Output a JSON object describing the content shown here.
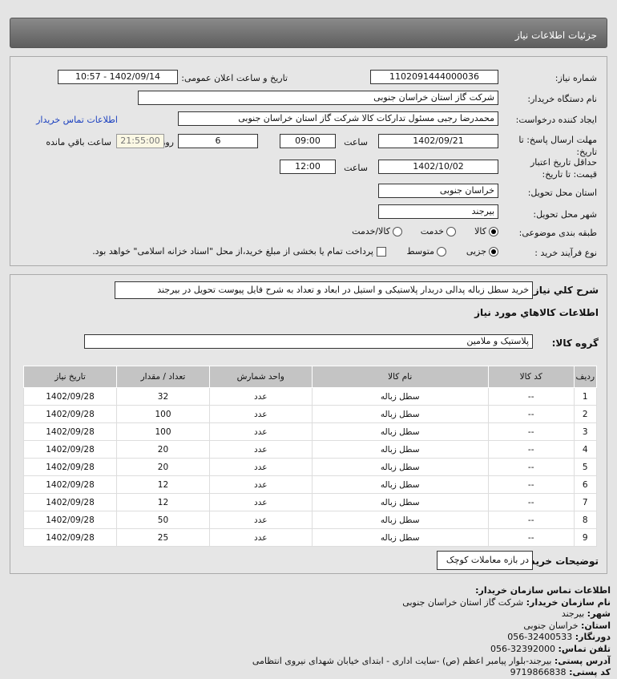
{
  "header": {
    "title": "جزئیات اطلاعات نیاز"
  },
  "form": {
    "need_number_label": "شماره نیاز:",
    "need_number": "1102091444000036",
    "announce_label": "تاریخ و ساعت اعلان عمومی:",
    "announce_value": "1402/09/14 - 10:57",
    "buyer_org_label": "نام دستگاه خریدار:",
    "buyer_org": "شرکت گاز استان خراسان جنوبی",
    "creator_label": "ایجاد کننده درخواست:",
    "creator": "محمدرضا رجبی مسئول تدارکات کالا شرکت گاز استان خراسان جنوبی",
    "contact_link": "اطلاعات تماس خریدار",
    "deadline_label": "مهلت ارسال پاسخ: تا تاریخ:",
    "deadline_date": "1402/09/21",
    "time_label": "ساعت",
    "deadline_time": "09:00",
    "days": "6",
    "days_label": "روز و",
    "remaining": "21:55:00",
    "remaining_label": "ساعت باقي مانده",
    "validity_label": "حداقل تاریخ اعتبار قیمت: تا تاریخ:",
    "validity_date": "1402/10/02",
    "validity_time": "12:00",
    "province_label": "استان محل تحویل:",
    "province": "خراسان جنوبی",
    "city_label": "شهر محل تحویل:",
    "city": "بیرجند",
    "category_label": "طبقه بندی موضوعی:",
    "category_options": [
      "کالا",
      "خدمت",
      "کالا/خدمت"
    ],
    "process_label": "نوع فرآیند خرید :",
    "process_options": [
      "جزیی",
      "متوسط"
    ],
    "payment_note": "پرداخت تمام یا بخشی از مبلغ خرید،از محل \"اسناد خزانه اسلامی\" خواهد بود."
  },
  "details": {
    "desc_label": "شرح کلي نیاز:",
    "desc": "خرید سطل زباله پدالی دربدار پلاستیکی و استیل در ابعاد و تعداد به شرح فایل پیوست تحویل در بیرجند",
    "goods_title": "اطلاعات کالاهاي مورد نیاز",
    "group_label": "گروه کالا:",
    "group": "پلاستیک و ملامین",
    "columns": [
      "ردیف",
      "کد کالا",
      "نام کالا",
      "واحد شمارش",
      "تعداد / مقدار",
      "تاریخ نیاز"
    ],
    "rows": [
      [
        "1",
        "--",
        "سطل زباله",
        "عدد",
        "32",
        "1402/09/28"
      ],
      [
        "2",
        "--",
        "سطل زباله",
        "عدد",
        "100",
        "1402/09/28"
      ],
      [
        "3",
        "--",
        "سطل زباله",
        "عدد",
        "100",
        "1402/09/28"
      ],
      [
        "4",
        "--",
        "سطل زباله",
        "عدد",
        "20",
        "1402/09/28"
      ],
      [
        "5",
        "--",
        "سطل زباله",
        "عدد",
        "20",
        "1402/09/28"
      ],
      [
        "6",
        "--",
        "سطل زباله",
        "عدد",
        "12",
        "1402/09/28"
      ],
      [
        "7",
        "--",
        "سطل زباله",
        "عدد",
        "12",
        "1402/09/28"
      ],
      [
        "8",
        "--",
        "سطل زباله",
        "عدد",
        "50",
        "1402/09/28"
      ],
      [
        "9",
        "--",
        "سطل زباله",
        "عدد",
        "25",
        "1402/09/28"
      ]
    ],
    "buyer_notes_label": "توضیحات خریدار:",
    "buyer_notes": "در بازه معاملات کوچک"
  },
  "contact": {
    "title": "اطلاعات تماس سازمان خریدار:",
    "items": [
      {
        "label": "نام سازمان خریدار:",
        "value": "شرکت گاز استان خراسان جنوبی"
      },
      {
        "label": "شهر:",
        "value": "بیرجند"
      },
      {
        "label": "استان:",
        "value": "خراسان جنوبی"
      },
      {
        "label": "دورنگار:",
        "value": "32400533-056"
      },
      {
        "label": "تلفن تماس:",
        "value": "32392000-056"
      },
      {
        "label": "آدرس پستی:",
        "value": "بیرجند-بلوار پیامبر اعظم (ص) -سایت اداری - ابتدای خیابان شهدای نیروی انتظامی"
      },
      {
        "label": "کد پستی:",
        "value": "9719866838"
      }
    ]
  }
}
